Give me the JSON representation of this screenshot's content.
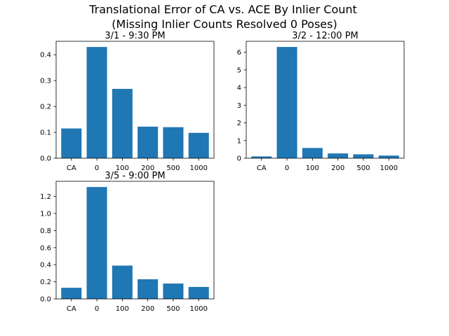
{
  "figure": {
    "title_line1": "Translational Error of CA vs. ACE By Inlier Count",
    "title_line2": "(Missing Inlier Counts Resolved 0 Poses)"
  },
  "colors": {
    "bar": "#1f77b4",
    "axis": "#000000"
  },
  "chart_data": [
    {
      "type": "bar",
      "title": "3/1 - 9:30 PM",
      "categories": [
        "CA",
        "0",
        "100",
        "200",
        "500",
        "1000"
      ],
      "values": [
        0.115,
        0.43,
        0.268,
        0.122,
        0.12,
        0.098
      ],
      "ylim": [
        0,
        0.452
      ],
      "yticks": [
        0.0,
        0.1,
        0.2,
        0.3,
        0.4
      ],
      "ytick_labels": [
        "0.0",
        "0.1",
        "0.2",
        "0.3",
        "0.4"
      ],
      "xlabel": "",
      "ylabel": ""
    },
    {
      "type": "bar",
      "title": "3/2 - 12:00 PM",
      "categories": [
        "CA",
        "0",
        "100",
        "200",
        "500",
        "1000"
      ],
      "values": [
        0.1,
        6.3,
        0.58,
        0.27,
        0.22,
        0.15
      ],
      "ylim": [
        0,
        6.62
      ],
      "yticks": [
        0,
        1,
        2,
        3,
        4,
        5,
        6
      ],
      "ytick_labels": [
        "0",
        "1",
        "2",
        "3",
        "4",
        "5",
        "6"
      ],
      "xlabel": "",
      "ylabel": ""
    },
    {
      "type": "bar",
      "title": "3/5 - 9:00 PM",
      "categories": [
        "CA",
        "0",
        "100",
        "200",
        "500",
        "1000"
      ],
      "values": [
        0.13,
        1.31,
        0.39,
        0.23,
        0.18,
        0.14
      ],
      "ylim": [
        0,
        1.377
      ],
      "yticks": [
        0.0,
        0.2,
        0.4,
        0.6,
        0.8,
        1.0,
        1.2
      ],
      "ytick_labels": [
        "0.0",
        "0.2",
        "0.4",
        "0.6",
        "0.8",
        "1.0",
        "1.2"
      ],
      "xlabel": "",
      "ylabel": ""
    }
  ]
}
